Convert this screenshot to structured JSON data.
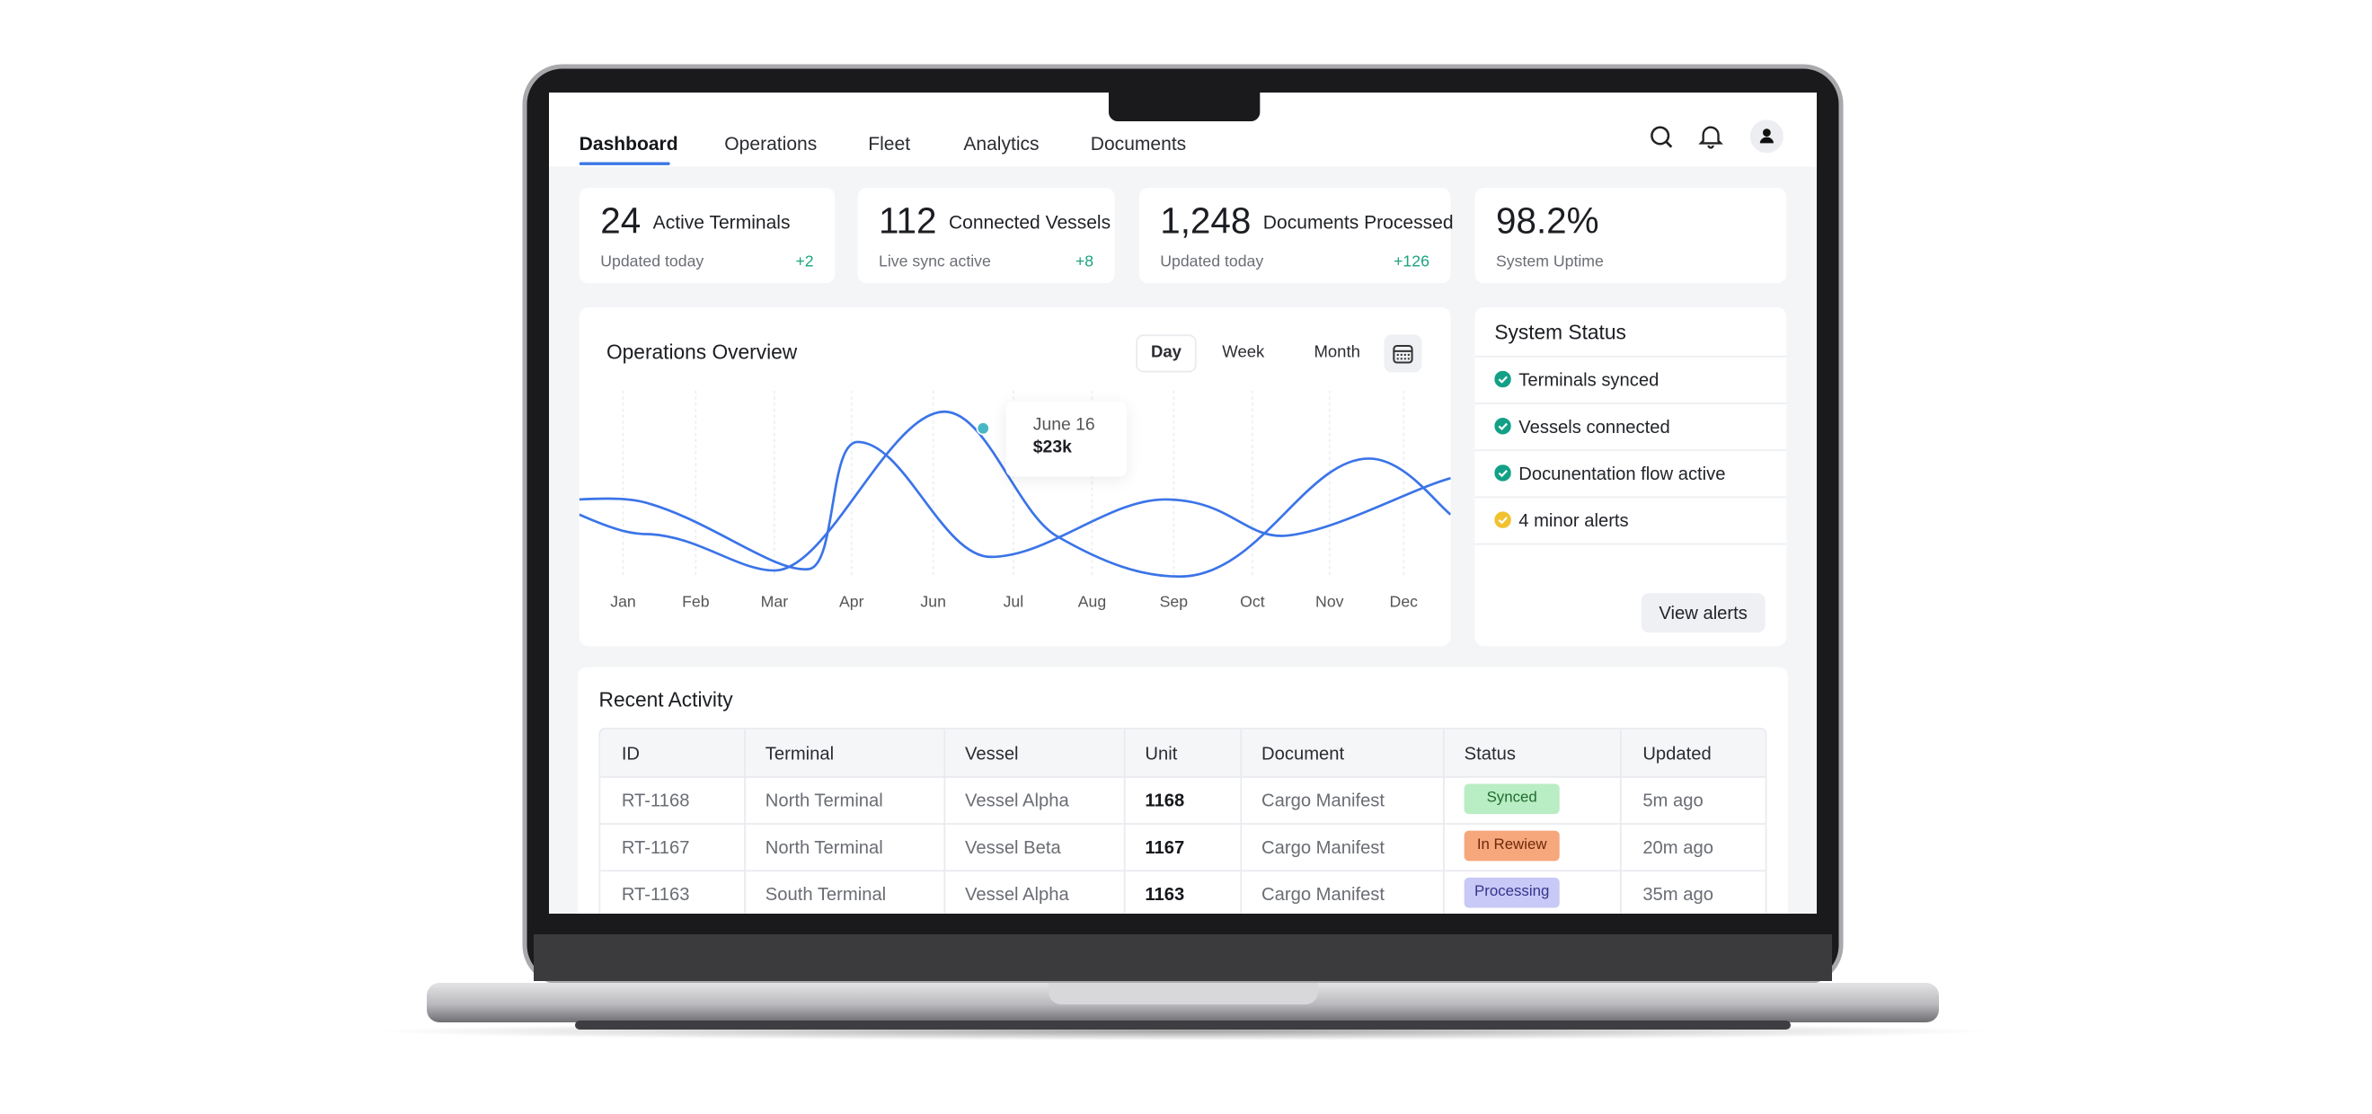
{
  "nav": [
    "Dashboard",
    "Operations",
    "Fleet",
    "Analytics",
    "Documents"
  ],
  "stats": [
    {
      "value": "24",
      "label": "Active Terminals",
      "note": "Updated today",
      "delta": "+2"
    },
    {
      "value": "112",
      "label": "Connected Vessels",
      "note": "Live sync active",
      "delta": "+8"
    },
    {
      "value": "1,248",
      "label": "Documents Processed",
      "note": "Updated today",
      "delta": "+126"
    },
    {
      "value": "98.2%",
      "note": "System Uptime"
    }
  ],
  "operations": {
    "title": "Operations Overview",
    "ranges": [
      "Day",
      "Week",
      "Month"
    ],
    "months": [
      "Jan",
      "Feb",
      "Mar",
      "Apr",
      "Jun",
      "Jul",
      "Aug",
      "Sep",
      "Oct",
      "Nov",
      "Dec"
    ],
    "tooltip": {
      "date": "June 16",
      "value": "$23k"
    }
  },
  "system_status": {
    "title": "System Status",
    "items": [
      {
        "text": "Terminals synced",
        "color": "#13a087"
      },
      {
        "text": "Vessels connected",
        "color": "#13a087"
      },
      {
        "text": "Docunentation flow active",
        "color": "#13a087"
      },
      {
        "text": "4 minor alerts",
        "color": "#f2c12e"
      }
    ],
    "button": "View alerts"
  },
  "activity": {
    "title": "Recent Activity",
    "columns": [
      "ID",
      "Terminal",
      "Vessel",
      "Unit",
      "Document",
      "Status",
      "Updated"
    ],
    "rows": [
      {
        "cells": [
          "RT-1168",
          "North Terminal",
          "Vessel Alpha",
          "1168",
          "Cargo Manifest",
          "Synced",
          "5m ago"
        ],
        "status_bg": "#b9edc3",
        "status_fg": "#1f6b30"
      },
      {
        "cells": [
          "RT-1167",
          "North Terminal",
          "Vessel Beta",
          "1167",
          "Cargo Manifest",
          "In Rewiew",
          "20m ago"
        ],
        "status_bg": "#f6a77c",
        "status_fg": "#6e2a0b"
      },
      {
        "cells": [
          "RT-1163",
          "South Terminal",
          "Vessel Alpha",
          "1163",
          "Cargo Manifest",
          "Processing",
          "35m ago"
        ],
        "status_bg": "#c8c9f6",
        "status_fg": "#33358a"
      }
    ]
  }
}
